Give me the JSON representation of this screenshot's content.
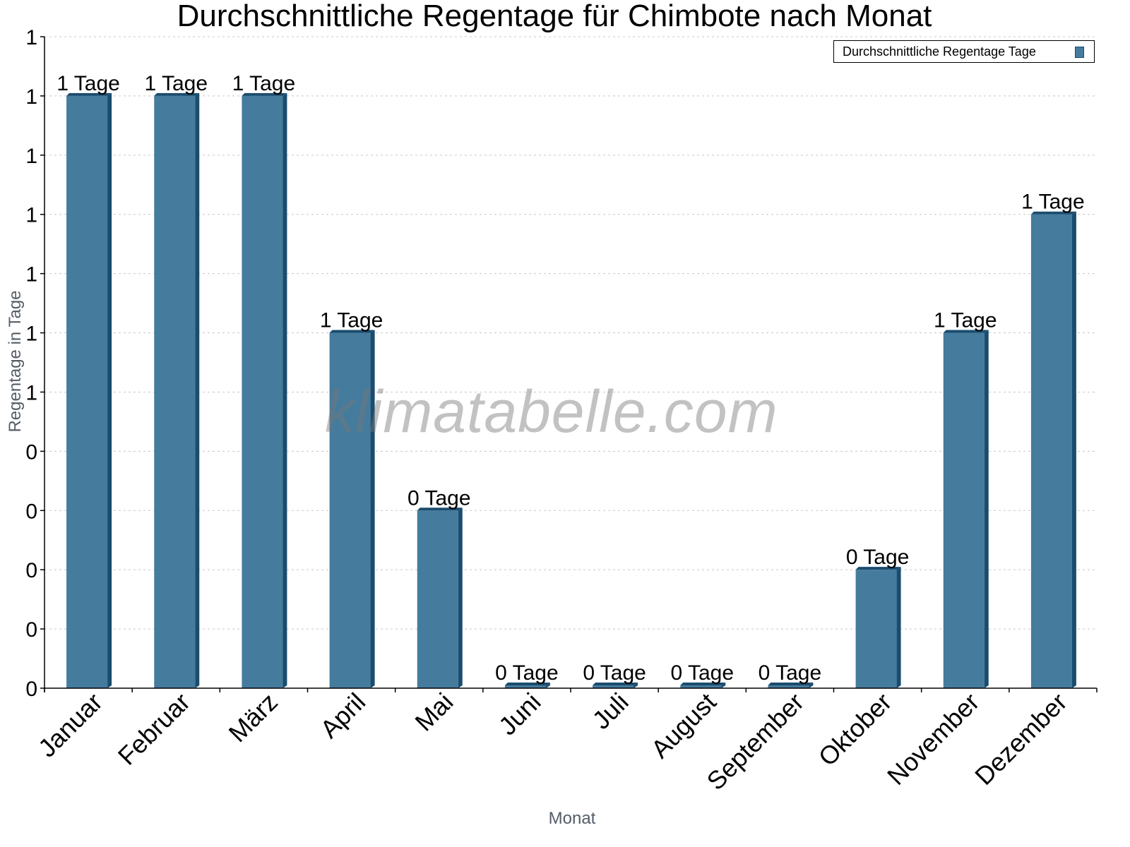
{
  "chart_data": {
    "type": "bar",
    "title": "Durchschnittliche Regentage für Chimbote nach Monat",
    "xlabel": "Monat",
    "ylabel": "Regentage in Tage",
    "categories": [
      "Januar",
      "Februar",
      "März",
      "April",
      "Mai",
      "Juni",
      "Juli",
      "August",
      "September",
      "Oktober",
      "November",
      "Dezember"
    ],
    "series": [
      {
        "name": "Durchschnittliche Regentage Tage",
        "values": [
          1.0,
          1.0,
          1.0,
          0.6,
          0.3,
          0.0,
          0.0,
          0.0,
          0.0,
          0.2,
          0.6,
          0.8
        ],
        "data_labels": [
          "1 Tage",
          "1 Tage",
          "1 Tage",
          "1 Tage",
          "0 Tage",
          "0 Tage",
          "0 Tage",
          "0 Tage",
          "0 Tage",
          "0 Tage",
          "1 Tage",
          "1 Tage"
        ],
        "color": "#457b9d",
        "edge_color": "#1a4c6e"
      }
    ],
    "y_ticks": [
      "0",
      "0",
      "0",
      "0",
      "0",
      "1",
      "1",
      "1",
      "1",
      "1",
      "1",
      "1"
    ],
    "ylim": [
      0,
      1.1
    ],
    "grid": true,
    "legend_position": "top-right",
    "watermark": "klimatabelle.com"
  }
}
